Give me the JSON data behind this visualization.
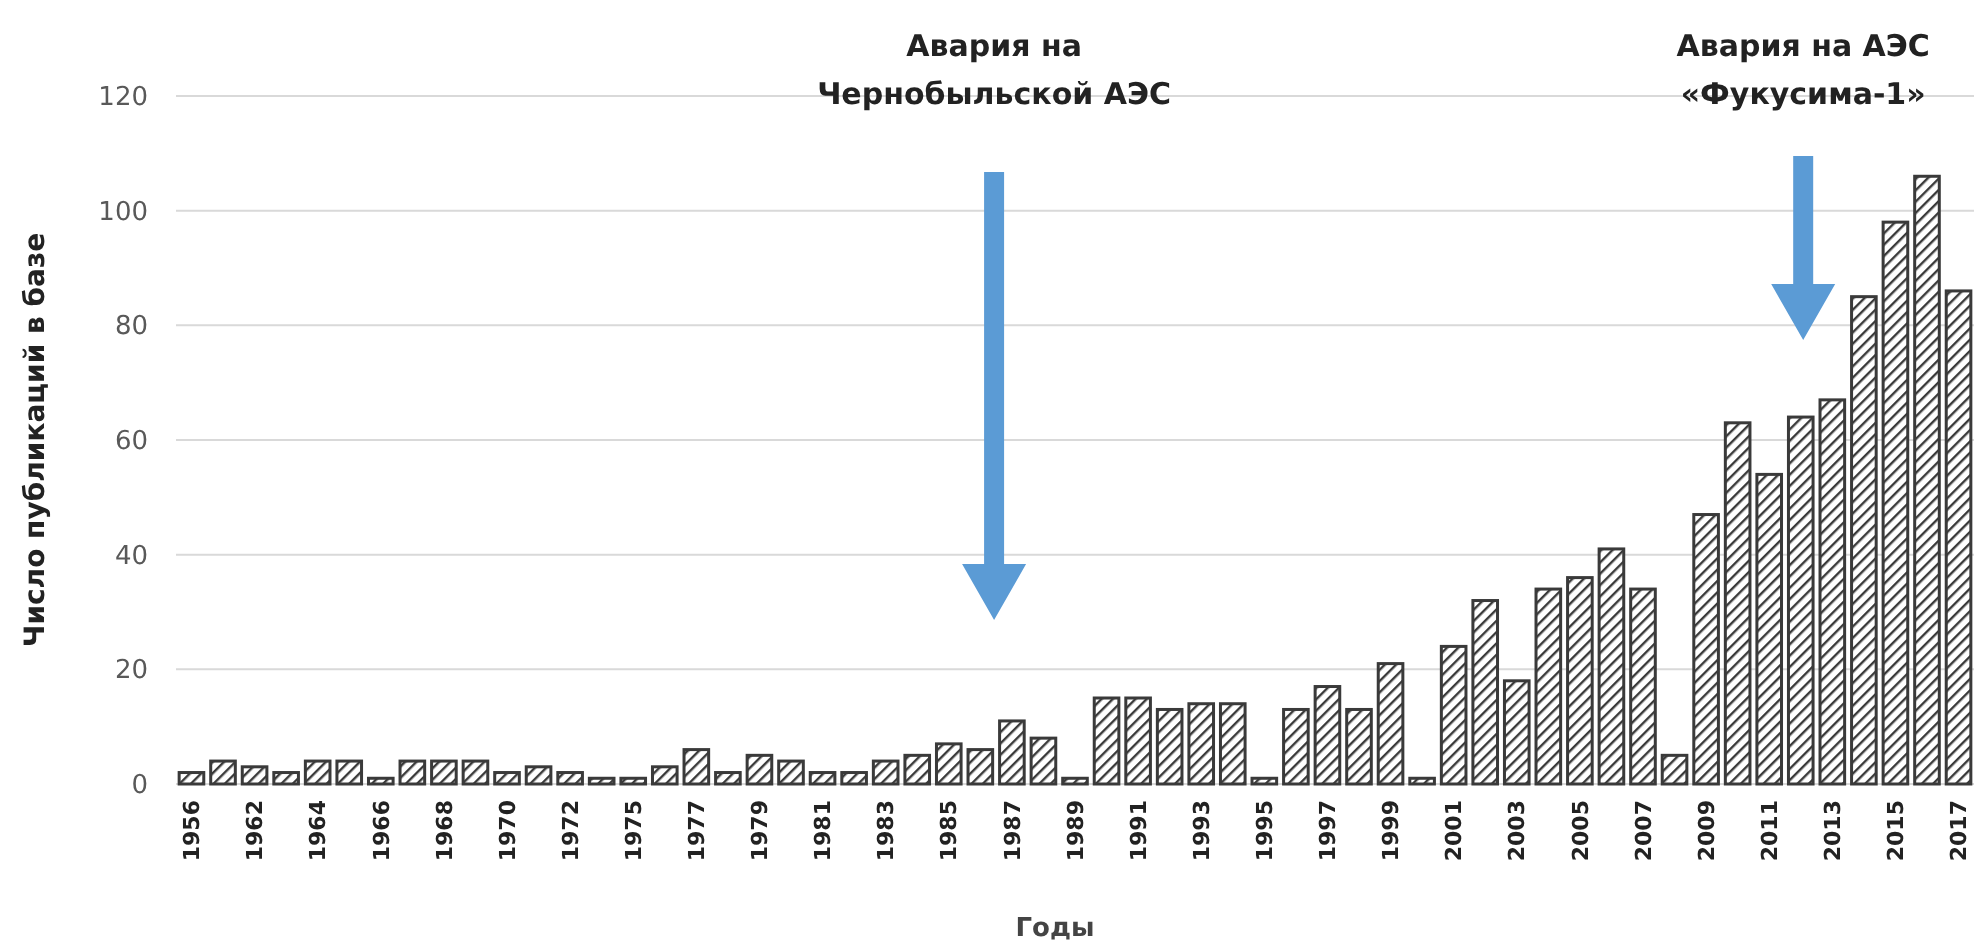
{
  "chart_data": {
    "type": "bar",
    "xlabel": "Годы",
    "ylabel": "Число публикаций в базе",
    "categories": [
      "1956",
      null,
      "1962",
      null,
      "1964",
      null,
      "1966",
      null,
      "1968",
      null,
      "1970",
      null,
      "1972",
      null,
      "1975",
      null,
      "1977",
      null,
      "1979",
      null,
      "1981",
      null,
      "1983",
      null,
      "1985",
      null,
      "1987",
      null,
      "1989",
      null,
      "1991",
      null,
      "1993",
      null,
      "1995",
      null,
      "1997",
      null,
      "1999",
      null,
      "2001",
      null,
      "2003",
      null,
      "2005",
      null,
      "2007",
      null,
      "2009",
      null,
      "2011",
      null,
      "2013",
      null,
      "2015",
      null,
      "2017"
    ],
    "values": [
      2,
      4,
      3,
      2,
      4,
      4,
      1,
      4,
      4,
      4,
      2,
      3,
      2,
      1,
      1,
      3,
      6,
      2,
      5,
      4,
      2,
      2,
      4,
      5,
      7,
      6,
      11,
      8,
      1,
      15,
      15,
      13,
      14,
      14,
      1,
      13,
      17,
      13,
      21,
      1,
      24,
      32,
      18,
      34,
      36,
      41,
      34,
      5,
      47,
      63,
      54,
      64,
      67,
      85,
      98,
      106,
      86
    ],
    "color": "#3a3a3a",
    "ylim": [
      0,
      120
    ],
    "yticks": [
      0,
      20,
      40,
      60,
      80,
      100,
      120
    ],
    "grid": "y",
    "annotations": [
      "Авария на\nЧернобыльской АЭС",
      "Авария на АЭС\n«Фукусима-1»"
    ]
  }
}
